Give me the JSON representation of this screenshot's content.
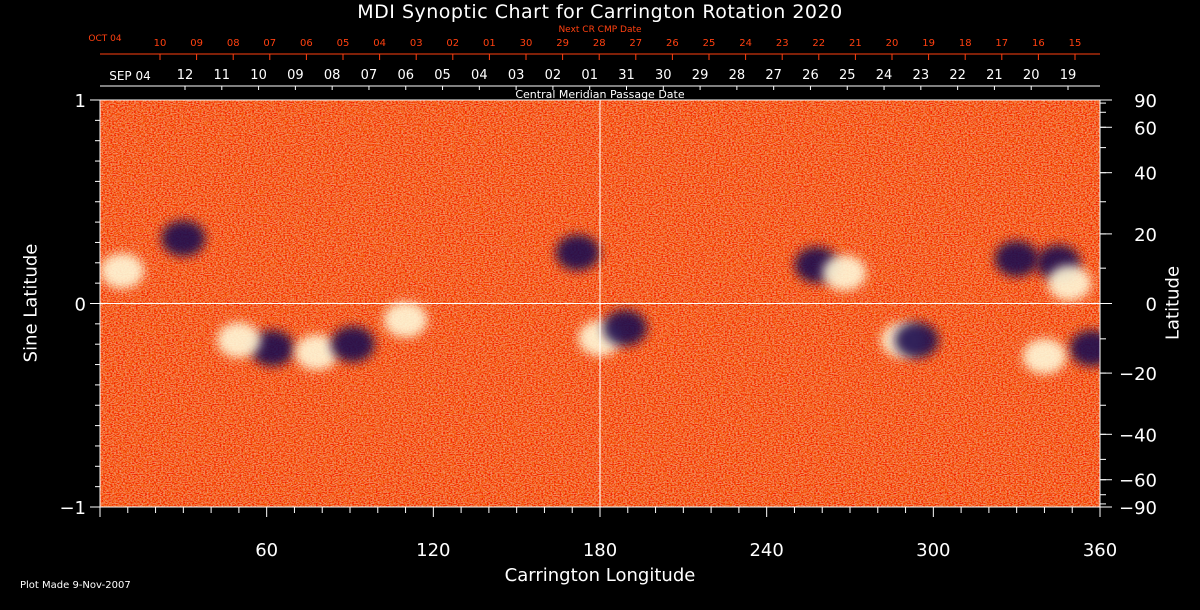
{
  "title": "MDI Synoptic Chart for Carrington Rotation 2020",
  "plot_note": "Plot Made  9-Nov-2007",
  "colors": {
    "background": "#000000",
    "axis": "#ffffff",
    "top_axis": "#ff4010",
    "magnetogram_bg": "#e8420c",
    "negative": "#1a1050",
    "positive": "#fff8d8"
  },
  "chart_data": {
    "type": "heatmap",
    "xlabel": "Carrington Longitude",
    "ylabel_left": "Sine Latitude",
    "ylabel_right": "Latitude",
    "xlim": [
      0,
      360
    ],
    "ylim": [
      -1,
      1
    ],
    "x_ticks": [
      60,
      120,
      180,
      240,
      300,
      360
    ],
    "y_ticks_left": [
      {
        "value": 1,
        "label": "1"
      },
      {
        "value": 0,
        "label": "0"
      },
      {
        "value": -1,
        "label": "−1"
      }
    ],
    "y_ticks_right": [
      90,
      60,
      40,
      20,
      0,
      -20,
      -40,
      -60,
      -90
    ],
    "grid": {
      "vertical_line_at": 180,
      "horizontal_line_at": 0
    },
    "top_axis_next": {
      "label": "Next CR CMP Date",
      "first": "OCT 04",
      "days": [
        "10",
        "09",
        "08",
        "07",
        "06",
        "05",
        "04",
        "03",
        "02",
        "01",
        "30",
        "29",
        "28",
        "27",
        "26",
        "25",
        "24",
        "23",
        "22",
        "21",
        "20",
        "19",
        "18",
        "17",
        "16",
        "15"
      ]
    },
    "top_axis_current": {
      "label": "Central Meridian Passage Date",
      "first": "SEP 04",
      "days": [
        "12",
        "11",
        "10",
        "09",
        "08",
        "07",
        "06",
        "05",
        "04",
        "03",
        "02",
        "01",
        "31",
        "30",
        "29",
        "28",
        "27",
        "26",
        "25",
        "24",
        "23",
        "22",
        "21",
        "20",
        "19"
      ]
    },
    "magnetic_regions": [
      {
        "lon": 62,
        "slat": -0.22,
        "polarity": "negative"
      },
      {
        "lon": 78,
        "slat": -0.24,
        "polarity": "positive"
      },
      {
        "lon": 91,
        "slat": -0.2,
        "polarity": "negative"
      },
      {
        "lon": 50,
        "slat": -0.18,
        "polarity": "positive"
      },
      {
        "lon": 30,
        "slat": 0.32,
        "polarity": "negative"
      },
      {
        "lon": 8,
        "slat": 0.16,
        "polarity": "positive"
      },
      {
        "lon": 172,
        "slat": 0.25,
        "polarity": "negative"
      },
      {
        "lon": 180,
        "slat": -0.17,
        "polarity": "positive"
      },
      {
        "lon": 189,
        "slat": -0.12,
        "polarity": "negative"
      },
      {
        "lon": 258,
        "slat": 0.19,
        "polarity": "negative"
      },
      {
        "lon": 268,
        "slat": 0.15,
        "polarity": "positive"
      },
      {
        "lon": 289,
        "slat": -0.18,
        "polarity": "positive"
      },
      {
        "lon": 294,
        "slat": -0.18,
        "polarity": "negative"
      },
      {
        "lon": 330,
        "slat": 0.22,
        "polarity": "negative"
      },
      {
        "lon": 345,
        "slat": 0.2,
        "polarity": "negative"
      },
      {
        "lon": 349,
        "slat": 0.1,
        "polarity": "positive"
      },
      {
        "lon": 357,
        "slat": -0.22,
        "polarity": "negative"
      },
      {
        "lon": 340,
        "slat": -0.26,
        "polarity": "positive"
      },
      {
        "lon": 110,
        "slat": -0.08,
        "polarity": "positive"
      }
    ]
  }
}
